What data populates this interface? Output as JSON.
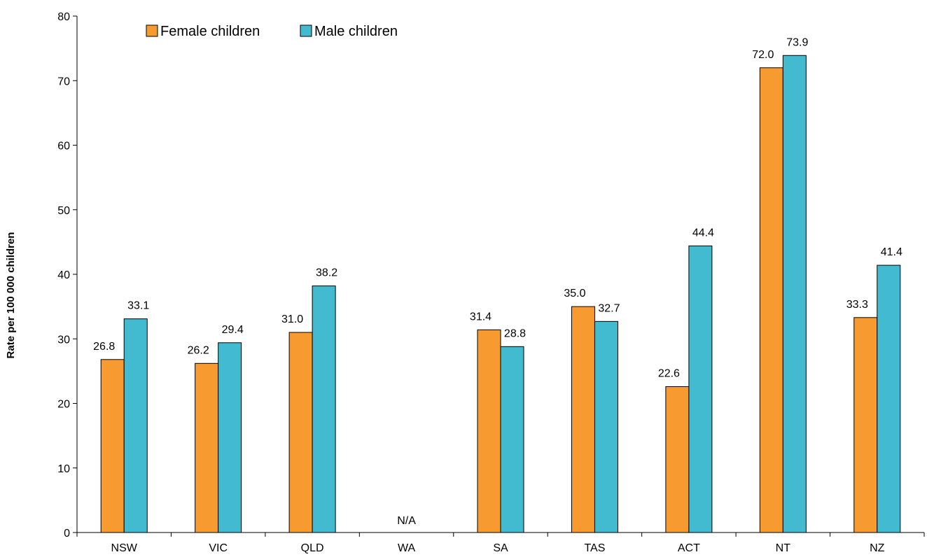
{
  "chart_data": {
    "type": "bar",
    "categories": [
      "NSW",
      "VIC",
      "QLD",
      "WA",
      "SA",
      "TAS",
      "ACT",
      "NT",
      "NZ"
    ],
    "series": [
      {
        "name": "Female children",
        "color": "#F79B30",
        "values": [
          26.8,
          26.2,
          31.0,
          null,
          31.4,
          35.0,
          22.6,
          72.0,
          33.3
        ],
        "labels": [
          "26.8",
          "26.2",
          "31.0",
          "",
          "31.4",
          "35.0",
          "22.6",
          "72.0",
          "33.3"
        ]
      },
      {
        "name": "Male children",
        "color": "#42BBD0",
        "values": [
          33.1,
          29.4,
          38.2,
          null,
          28.8,
          32.7,
          44.4,
          73.9,
          41.4
        ],
        "labels": [
          "33.1",
          "29.4",
          "38.2",
          "",
          "28.8",
          "32.7",
          "44.4",
          "73.9",
          "41.4"
        ]
      }
    ],
    "missing_label": "N/A",
    "missing_category": "WA",
    "title": "",
    "xlabel": "",
    "ylabel": "Rate per 100 000 children",
    "ylim": [
      0,
      80
    ],
    "yticks": [
      0,
      10,
      20,
      30,
      40,
      50,
      60,
      70,
      80
    ],
    "grid": false,
    "legend_position": "top-left"
  }
}
